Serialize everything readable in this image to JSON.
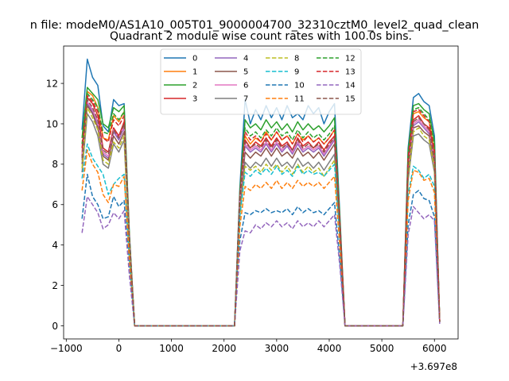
{
  "chart_data": {
    "type": "line",
    "suptitle": "n file: modeM0/AS1A10_005T01_9000004700_32310cztM0_level2_quad_clean",
    "title": "Quadrant 2 module wise count rates with 100.0s bins.",
    "xlabel": "",
    "ylabel": "",
    "x_offset_label": "+3.697e8",
    "xlim": [
      -1050,
      6450
    ],
    "ylim": [
      -0.65,
      13.85
    ],
    "x_ticks": [
      -1000,
      0,
      1000,
      2000,
      3000,
      4000,
      5000,
      6000
    ],
    "x_tick_labels": [
      "−1000",
      "0",
      "1000",
      "2000",
      "3000",
      "4000",
      "5000",
      "6000"
    ],
    "y_ticks": [
      0,
      2,
      4,
      6,
      8,
      10,
      12
    ],
    "y_tick_labels": [
      "0",
      "2",
      "4",
      "6",
      "8",
      "10",
      "12"
    ],
    "grid": false,
    "legend_position": "upper center",
    "legend_columns": 4,
    "x": [
      -700,
      -600,
      -500,
      -400,
      -300,
      -200,
      -100,
      0,
      100,
      200,
      300,
      2200,
      2300,
      2400,
      2500,
      2600,
      2700,
      2800,
      2900,
      3000,
      3100,
      3200,
      3300,
      3400,
      3500,
      3600,
      3700,
      3800,
      3900,
      4000,
      4100,
      4200,
      4300,
      5400,
      5500,
      5600,
      5700,
      5800,
      5900,
      6000,
      6100
    ],
    "series": [
      {
        "name": "0",
        "color": "#1f77b4",
        "dash": "solid",
        "values": [
          9.7,
          13.2,
          12.3,
          11.9,
          9.9,
          9.6,
          11.2,
          10.9,
          11.0,
          4.6,
          0,
          0,
          6.8,
          11.2,
          10.0,
          10.7,
          10.2,
          10.9,
          10.3,
          10.8,
          10.2,
          10.9,
          10.3,
          10.5,
          10.2,
          10.9,
          10.5,
          10.8,
          10.0,
          10.6,
          11.0,
          5.6,
          0,
          0,
          8.8,
          11.3,
          11.5,
          11.1,
          10.9,
          9.4,
          0.2
        ]
      },
      {
        "name": "1",
        "color": "#ff7f0e",
        "dash": "solid",
        "values": [
          8.6,
          11.6,
          11.4,
          10.8,
          9.3,
          9.2,
          10.4,
          10.1,
          10.6,
          4.4,
          0,
          0,
          6.4,
          9.4,
          9.0,
          9.3,
          9.1,
          9.6,
          9.2,
          9.6,
          9.2,
          9.4,
          9.0,
          9.5,
          9.2,
          9.4,
          9.1,
          9.3,
          9.0,
          9.3,
          9.7,
          5.2,
          0,
          0,
          8.2,
          10.5,
          10.6,
          10.3,
          10.1,
          8.6,
          0.2
        ]
      },
      {
        "name": "2",
        "color": "#2ca02c",
        "dash": "solid",
        "values": [
          9.3,
          11.8,
          11.5,
          11.2,
          10.0,
          9.8,
          10.8,
          10.6,
          10.9,
          4.5,
          0,
          0,
          6.6,
          10.2,
          9.8,
          10.0,
          9.7,
          10.2,
          9.8,
          10.1,
          9.7,
          10.0,
          9.6,
          10.1,
          9.7,
          10.0,
          9.7,
          9.9,
          9.6,
          9.9,
          10.3,
          5.4,
          0,
          0,
          8.6,
          10.9,
          11.0,
          10.7,
          10.5,
          9.1,
          0.2
        ]
      },
      {
        "name": "3",
        "color": "#d62728",
        "dash": "solid",
        "values": [
          8.4,
          11.3,
          11.0,
          10.4,
          8.8,
          8.6,
          9.8,
          9.4,
          10.1,
          4.3,
          0,
          0,
          6.3,
          9.2,
          8.8,
          9.1,
          8.9,
          9.3,
          8.9,
          9.3,
          8.9,
          9.1,
          8.7,
          9.3,
          8.9,
          9.1,
          8.8,
          9.1,
          8.7,
          9.1,
          9.4,
          5.1,
          0,
          0,
          8.0,
          10.2,
          10.4,
          10.0,
          9.8,
          8.4,
          0.2
        ]
      },
      {
        "name": "4",
        "color": "#9467bd",
        "dash": "solid",
        "values": [
          8.2,
          11.0,
          10.6,
          10.0,
          8.5,
          8.3,
          9.6,
          9.2,
          9.8,
          4.2,
          0,
          0,
          6.1,
          8.9,
          8.6,
          8.8,
          8.6,
          9.0,
          8.6,
          9.0,
          8.6,
          8.9,
          8.5,
          9.0,
          8.6,
          8.8,
          8.6,
          8.8,
          8.4,
          8.8,
          9.2,
          5.0,
          0,
          0,
          7.8,
          9.9,
          10.1,
          9.8,
          9.5,
          8.2,
          0.2
        ]
      },
      {
        "name": "5",
        "color": "#8c564b",
        "dash": "solid",
        "values": [
          8.0,
          10.9,
          10.5,
          9.8,
          8.4,
          8.2,
          9.4,
          9.0,
          9.6,
          4.1,
          0,
          0,
          6.0,
          8.6,
          8.3,
          8.6,
          8.4,
          8.8,
          8.4,
          8.8,
          8.4,
          8.6,
          8.3,
          8.8,
          8.4,
          8.6,
          8.3,
          8.6,
          8.2,
          8.6,
          9.0,
          4.9,
          0,
          0,
          7.6,
          9.8,
          9.9,
          9.6,
          9.4,
          8.0,
          0.2
        ]
      },
      {
        "name": "6",
        "color": "#e377c2",
        "dash": "solid",
        "values": [
          8.5,
          11.1,
          10.7,
          10.1,
          8.6,
          8.4,
          9.7,
          9.3,
          9.9,
          4.2,
          0,
          0,
          6.2,
          9.0,
          8.7,
          8.9,
          8.7,
          9.1,
          8.7,
          9.1,
          8.7,
          9.0,
          8.6,
          9.1,
          8.7,
          8.9,
          8.7,
          8.9,
          8.5,
          8.9,
          9.3,
          5.0,
          0,
          0,
          7.9,
          10.0,
          10.2,
          9.9,
          9.6,
          8.3,
          0.2
        ]
      },
      {
        "name": "7",
        "color": "#7f7f7f",
        "dash": "solid",
        "values": [
          7.6,
          10.5,
          10.1,
          9.4,
          8.0,
          7.8,
          9.0,
          8.6,
          9.2,
          3.9,
          0,
          0,
          5.6,
          8.1,
          7.8,
          8.1,
          7.9,
          8.3,
          7.9,
          8.3,
          7.9,
          8.1,
          7.8,
          8.3,
          7.9,
          8.1,
          7.8,
          8.1,
          7.7,
          8.1,
          8.5,
          4.6,
          0,
          0,
          7.2,
          9.4,
          9.5,
          9.2,
          9.0,
          7.6,
          0.2
        ]
      },
      {
        "name": "8",
        "color": "#bcbd22",
        "dash": "dashed",
        "values": [
          7.8,
          10.8,
          10.3,
          9.7,
          8.2,
          8.0,
          9.1,
          8.8,
          9.4,
          4.0,
          0,
          0,
          5.4,
          7.9,
          7.7,
          7.9,
          7.6,
          8.0,
          7.7,
          8.0,
          7.6,
          7.9,
          7.5,
          8.0,
          7.6,
          7.9,
          7.6,
          7.8,
          7.4,
          7.8,
          8.2,
          4.5,
          0,
          0,
          7.4,
          9.6,
          9.8,
          9.4,
          9.2,
          7.8,
          0.2
        ]
      },
      {
        "name": "9",
        "color": "#17becf",
        "dash": "dashed",
        "values": [
          7.3,
          9.0,
          8.3,
          7.9,
          7.5,
          6.5,
          7.0,
          7.3,
          7.5,
          3.3,
          0,
          0,
          5.4,
          7.6,
          7.4,
          7.7,
          7.5,
          7.8,
          7.5,
          7.9,
          7.5,
          7.7,
          7.4,
          7.9,
          7.5,
          7.7,
          7.5,
          7.6,
          7.4,
          7.7,
          8.0,
          4.4,
          0,
          0,
          6.5,
          7.9,
          7.7,
          7.3,
          7.5,
          6.9,
          0.2
        ]
      },
      {
        "name": "10",
        "color": "#1f77b4",
        "dash": "dashed",
        "values": [
          5.3,
          7.5,
          6.4,
          6.0,
          5.3,
          5.4,
          6.4,
          5.9,
          6.2,
          2.7,
          0,
          0,
          4.2,
          5.6,
          5.5,
          5.7,
          5.6,
          5.8,
          5.6,
          5.7,
          5.6,
          5.8,
          5.5,
          5.9,
          5.6,
          5.8,
          5.6,
          5.7,
          5.5,
          5.8,
          6.1,
          3.3,
          0,
          0,
          5.0,
          6.5,
          6.7,
          6.3,
          6.2,
          5.4,
          0.2
        ]
      },
      {
        "name": "11",
        "color": "#ff7f0e",
        "dash": "dashed",
        "values": [
          6.7,
          8.7,
          8.0,
          7.6,
          6.5,
          6.1,
          7.0,
          6.9,
          7.4,
          3.3,
          0,
          0,
          4.9,
          6.9,
          6.7,
          7.0,
          6.8,
          7.1,
          6.8,
          7.2,
          6.8,
          7.1,
          6.8,
          7.2,
          6.9,
          7.1,
          6.9,
          7.1,
          6.8,
          7.1,
          7.4,
          4.0,
          0,
          0,
          6.2,
          7.7,
          7.6,
          7.2,
          7.3,
          6.6,
          0.2
        ]
      },
      {
        "name": "12",
        "color": "#2ca02c",
        "dash": "dashed",
        "values": [
          9.0,
          11.5,
          11.2,
          10.8,
          9.6,
          9.5,
          10.5,
          10.2,
          10.6,
          4.4,
          0,
          0,
          6.5,
          9.8,
          9.4,
          9.6,
          9.3,
          9.7,
          9.4,
          9.8,
          9.4,
          9.6,
          9.2,
          9.7,
          9.3,
          9.6,
          9.3,
          9.5,
          9.2,
          9.5,
          9.9,
          5.3,
          0,
          0,
          8.4,
          10.7,
          10.8,
          10.5,
          10.2,
          8.8,
          0.2
        ]
      },
      {
        "name": "13",
        "color": "#d62728",
        "dash": "dashed",
        "values": [
          8.8,
          11.4,
          11.1,
          10.6,
          9.3,
          9.1,
          10.2,
          9.9,
          10.4,
          4.3,
          0,
          0,
          6.4,
          9.6,
          9.2,
          9.4,
          9.1,
          9.5,
          9.2,
          9.6,
          9.2,
          9.4,
          9.0,
          9.5,
          9.1,
          9.4,
          9.1,
          9.3,
          9.0,
          9.3,
          9.7,
          5.2,
          0,
          0,
          8.3,
          10.6,
          10.7,
          10.4,
          10.1,
          8.7,
          0.2
        ]
      },
      {
        "name": "14",
        "color": "#9467bd",
        "dash": "dashed",
        "values": [
          4.6,
          6.4,
          6.0,
          5.6,
          4.8,
          5.0,
          5.6,
          5.3,
          5.7,
          2.5,
          0,
          0,
          3.7,
          4.7,
          4.6,
          5.0,
          4.8,
          5.1,
          4.9,
          5.2,
          4.9,
          5.1,
          4.8,
          5.2,
          4.9,
          5.1,
          4.9,
          5.2,
          4.9,
          5.2,
          5.5,
          3.0,
          0,
          0,
          4.5,
          5.9,
          5.6,
          5.3,
          5.5,
          5.2,
          0.1
        ]
      },
      {
        "name": "15",
        "color": "#8c564b",
        "dash": "dashed",
        "values": [
          8.3,
          11.2,
          10.8,
          10.2,
          8.7,
          8.5,
          9.7,
          9.3,
          10.0,
          4.3,
          0,
          0,
          6.2,
          9.1,
          8.8,
          9.0,
          8.8,
          9.2,
          8.8,
          9.2,
          8.8,
          9.0,
          8.7,
          9.2,
          8.8,
          9.0,
          8.8,
          9.0,
          8.6,
          9.0,
          9.3,
          5.0,
          0,
          0,
          7.9,
          10.1,
          10.3,
          10.0,
          9.7,
          8.3,
          0.2
        ]
      }
    ]
  }
}
